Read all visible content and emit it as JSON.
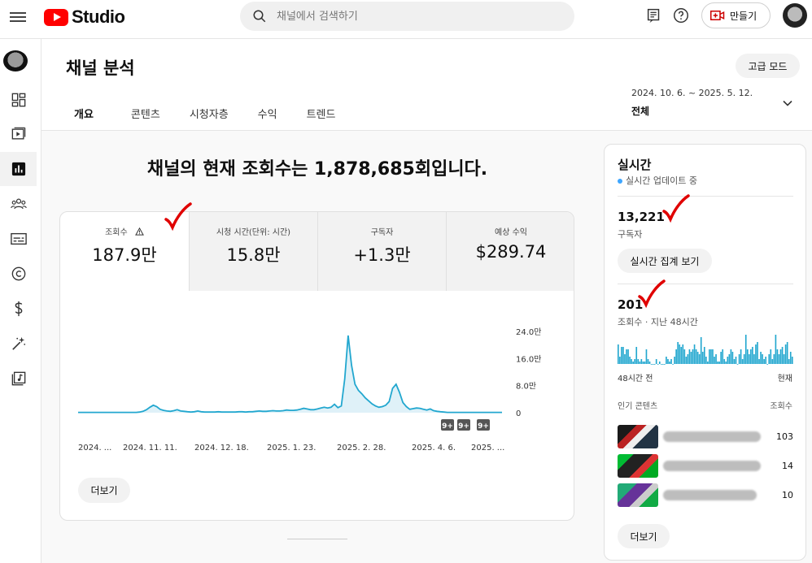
{
  "header": {
    "app_name": "Studio",
    "search_placeholder": "채널에서 검색하기",
    "create_label": "만들기"
  },
  "page": {
    "title": "채널 분석",
    "advanced_mode": "고급 모드",
    "tabs": [
      "개요",
      "콘텐츠",
      "시청자층",
      "수익",
      "트렌드"
    ],
    "active_tab": "개요",
    "date_range": "2024. 10. 6. ~ 2025. 5. 12.",
    "date_scope": "전체"
  },
  "overview": {
    "headline": "채널의 현재 조회수는 1,878,685회입니다.",
    "metrics": [
      {
        "label": "조회수",
        "value": "187.9만",
        "warning": true
      },
      {
        "label": "시청 시간(단위: 시간)",
        "value": "15.8만"
      },
      {
        "label": "구독자",
        "value": "+1.3만"
      },
      {
        "label": "예상 수익",
        "value": "$289.74"
      }
    ],
    "more_label": "더보기",
    "badges": [
      "9+",
      "9+",
      "9+"
    ]
  },
  "chart_data": {
    "type": "area",
    "series": [
      {
        "values": [
          0.1,
          0.1,
          0.1,
          0.1,
          0.1,
          0.1,
          0.1,
          0.1,
          0.1,
          0.1,
          0.1,
          0.1,
          0.1,
          0.1,
          0.1,
          0.1,
          0.1,
          0.1,
          0.2,
          0.4,
          0.9,
          1.6,
          2.2,
          1.8,
          1.0,
          0.7,
          0.5,
          0.4,
          0.6,
          0.9,
          0.5,
          0.4,
          0.3,
          0.2,
          0.3,
          0.5,
          0.3,
          0.2,
          0.2,
          0.2,
          0.2,
          0.3,
          0.2,
          0.2,
          0.2,
          0.2,
          0.2,
          0.3,
          0.3,
          0.2,
          0.3,
          0.3,
          0.4,
          0.5,
          0.4,
          0.4,
          0.5,
          0.6,
          0.5,
          0.5,
          0.6,
          0.8,
          0.7,
          0.7,
          0.8,
          1.0,
          1.3,
          1.1,
          0.9,
          0.9,
          1.1,
          1.4,
          1.6,
          1.4,
          1.6,
          2.5,
          1.5,
          2.0,
          10.0,
          22.8,
          14.0,
          8.4,
          6.6,
          5.6,
          4.4,
          3.5,
          2.6,
          2.0,
          1.6,
          1.8,
          2.2,
          3.3,
          7.2,
          8.4,
          6.0,
          3.0,
          1.8,
          1.0,
          1.2,
          1.4,
          1.3,
          1.0,
          0.8,
          1.1,
          0.6,
          0.4,
          0.3,
          0.2,
          0.1,
          0.1,
          0.1,
          0.1,
          0.1,
          0.1,
          0.1,
          0.1,
          0.1,
          0.1,
          0.1,
          0.1,
          0.1,
          0.1,
          0.1,
          0.1,
          0.1
        ]
      }
    ],
    "x_ticks": [
      "2024. ...",
      "2024. 11. 11.",
      "2024. 12. 18.",
      "2025. 1. 23.",
      "2025. 2. 28.",
      "2025. 4. 6.",
      "2025. ..."
    ],
    "y_ticks": [
      "24.0만",
      "16.0만",
      "8.0만",
      "0"
    ],
    "ylim": [
      0,
      24
    ]
  },
  "realtime": {
    "title": "실시간",
    "subtitle": "실시간 업데이트 중",
    "subscribers": "13,221",
    "subscribers_label": "구독자",
    "live_button": "실시간 집계 보기",
    "views": "201",
    "views_label": "조회수 · 지난 48시간",
    "bars": [
      8,
      3,
      7,
      7,
      4,
      6,
      6,
      3,
      2,
      1,
      2,
      7,
      2,
      1,
      2,
      1,
      1,
      6,
      2,
      1,
      0,
      0,
      0,
      2,
      0,
      1,
      0,
      0,
      0,
      3,
      2,
      1,
      2,
      0,
      3,
      6,
      9,
      8,
      7,
      8,
      6,
      3,
      4,
      6,
      5,
      6,
      8,
      6,
      5,
      4,
      11,
      5,
      7,
      3,
      1,
      6,
      6,
      6,
      3,
      4,
      1,
      1,
      5,
      6,
      2,
      1,
      3,
      4,
      6,
      5,
      2,
      3,
      0,
      4,
      6,
      2,
      4,
      12,
      6,
      4,
      6,
      7,
      4,
      8,
      9,
      2,
      5,
      4,
      2,
      3,
      0,
      4,
      6,
      2,
      4,
      12,
      6,
      4,
      6,
      7,
      4,
      8,
      9,
      2,
      5,
      3
    ],
    "axis_left": "48시간 전",
    "axis_right": "현재",
    "popular_label": "인기 콘텐츠",
    "popular_col": "조회수",
    "popular": [
      {
        "count": "103"
      },
      {
        "count": "14"
      },
      {
        "count": "10"
      }
    ],
    "more_label": "더보기"
  },
  "colors": {
    "accent": "#3ea6ff",
    "chart_line": "#22a7cf",
    "chart_fill": "#dff1f8",
    "check_mark": "#e00000",
    "brand_red": "#ff0000"
  }
}
